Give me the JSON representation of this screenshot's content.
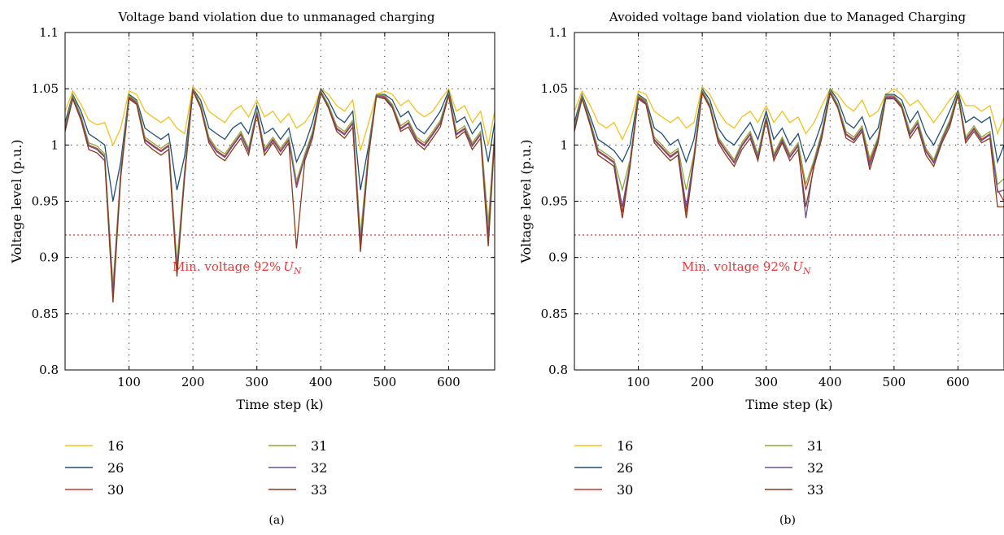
{
  "chart_data": [
    {
      "type": "line",
      "title": "Voltage band violation due to unmanaged charging",
      "xlabel": "Time step (k)",
      "ylabel": "Voltage level (p.u.)",
      "panel_label": "(a)",
      "xlim": [
        0,
        672
      ],
      "ylim": [
        0.8,
        1.1
      ],
      "xticks": [
        "100",
        "200",
        "300",
        "400",
        "500",
        "600"
      ],
      "yticks": [
        "0.8",
        "0.85",
        "0.9",
        "0.95",
        "1",
        "1.05",
        "1.1"
      ],
      "grid": true,
      "legend_position": "below",
      "reference_line": {
        "value": 0.92,
        "label_prefix": "Min. voltage 92%",
        "label_symbol": "U",
        "label_subscript": "N",
        "color": "#e8383b"
      },
      "x": [
        0,
        12,
        25,
        37,
        50,
        62,
        75,
        87,
        100,
        112,
        125,
        137,
        150,
        162,
        175,
        187,
        200,
        212,
        225,
        237,
        250,
        262,
        275,
        287,
        300,
        312,
        325,
        337,
        350,
        362,
        375,
        387,
        400,
        412,
        425,
        437,
        450,
        462,
        475,
        487,
        500,
        512,
        525,
        537,
        550,
        562,
        575,
        587,
        600,
        612,
        625,
        637,
        650,
        662,
        672
      ],
      "series": [
        {
          "name": "16",
          "color": "#f2c21c",
          "values": [
            1.03,
            1.048,
            1.036,
            1.022,
            1.018,
            1.02,
            1.0,
            1.015,
            1.048,
            1.045,
            1.03,
            1.025,
            1.02,
            1.025,
            1.015,
            1.01,
            1.052,
            1.045,
            1.03,
            1.025,
            1.02,
            1.03,
            1.035,
            1.025,
            1.04,
            1.025,
            1.03,
            1.02,
            1.028,
            1.015,
            1.02,
            1.03,
            1.05,
            1.045,
            1.035,
            1.03,
            1.04,
            0.995,
            1.02,
            1.045,
            1.048,
            1.045,
            1.035,
            1.04,
            1.03,
            1.025,
            1.03,
            1.04,
            1.05,
            1.03,
            1.035,
            1.02,
            1.03,
            1.0,
            1.03
          ]
        },
        {
          "name": "26",
          "color": "#1f4e79",
          "values": [
            1.02,
            1.045,
            1.03,
            1.01,
            1.005,
            1.0,
            0.95,
            0.985,
            1.045,
            1.04,
            1.015,
            1.01,
            1.005,
            1.01,
            0.96,
            0.99,
            1.05,
            1.04,
            1.015,
            1.01,
            1.005,
            1.015,
            1.02,
            1.01,
            1.035,
            1.01,
            1.015,
            1.005,
            1.015,
            0.985,
            1.0,
            1.02,
            1.05,
            1.04,
            1.025,
            1.02,
            1.03,
            0.96,
            1.0,
            1.045,
            1.045,
            1.04,
            1.025,
            1.03,
            1.015,
            1.01,
            1.02,
            1.03,
            1.048,
            1.02,
            1.025,
            1.01,
            1.02,
            0.985,
            1.02
          ]
        },
        {
          "name": "30",
          "color": "#c0392b",
          "values": [
            1.015,
            1.043,
            1.025,
            1.0,
            0.997,
            0.99,
            0.87,
            0.975,
            1.043,
            1.038,
            1.005,
            1.0,
            0.995,
            1.0,
            0.89,
            0.975,
            1.05,
            1.035,
            1.005,
            0.995,
            0.99,
            1.0,
            1.01,
            0.995,
            1.03,
            0.995,
            1.005,
            0.995,
            1.005,
            0.965,
            0.99,
            1.01,
            1.048,
            1.035,
            1.015,
            1.01,
            1.02,
            0.915,
            0.995,
            1.045,
            1.043,
            1.035,
            1.015,
            1.02,
            1.005,
            1.0,
            1.01,
            1.02,
            1.046,
            1.01,
            1.015,
            1.0,
            1.01,
            0.92,
            1.01
          ]
        },
        {
          "name": "31",
          "color": "#8aaa3c",
          "values": [
            1.016,
            1.044,
            1.026,
            1.002,
            0.999,
            0.992,
            0.875,
            0.977,
            1.044,
            1.039,
            1.007,
            1.002,
            0.997,
            1.002,
            0.895,
            0.977,
            1.05,
            1.036,
            1.007,
            0.997,
            0.992,
            1.002,
            1.012,
            0.997,
            1.031,
            0.997,
            1.007,
            0.997,
            1.007,
            0.968,
            0.992,
            1.012,
            1.048,
            1.036,
            1.017,
            1.012,
            1.022,
            0.92,
            0.997,
            1.045,
            1.044,
            1.036,
            1.017,
            1.022,
            1.007,
            1.002,
            1.012,
            1.022,
            1.046,
            1.012,
            1.017,
            1.002,
            1.012,
            0.93,
            1.012
          ]
        },
        {
          "name": "32",
          "color": "#6c4f96",
          "values": [
            1.014,
            1.042,
            1.024,
            0.999,
            0.996,
            0.989,
            0.868,
            0.974,
            1.042,
            1.037,
            1.004,
            0.999,
            0.994,
            0.999,
            0.888,
            0.974,
            1.049,
            1.034,
            1.004,
            0.994,
            0.989,
            0.999,
            1.009,
            0.994,
            1.029,
            0.994,
            1.004,
            0.994,
            1.004,
            0.962,
            0.989,
            1.009,
            1.047,
            1.034,
            1.014,
            1.009,
            1.019,
            0.912,
            0.994,
            1.044,
            1.042,
            1.034,
            1.014,
            1.019,
            1.004,
            0.999,
            1.009,
            1.019,
            1.045,
            1.009,
            1.014,
            0.999,
            1.009,
            0.918,
            1.009
          ]
        },
        {
          "name": "33",
          "color": "#8b3a1a",
          "values": [
            1.012,
            1.041,
            1.022,
            0.996,
            0.993,
            0.986,
            0.86,
            0.971,
            1.041,
            1.036,
            1.002,
            0.996,
            0.991,
            0.996,
            0.883,
            0.971,
            1.048,
            1.033,
            1.002,
            0.991,
            0.986,
            0.996,
            1.006,
            0.991,
            1.027,
            0.991,
            1.002,
            0.991,
            1.002,
            0.908,
            0.986,
            1.006,
            1.046,
            1.033,
            1.012,
            1.006,
            1.016,
            0.905,
            0.991,
            1.043,
            1.041,
            1.033,
            1.012,
            1.016,
            1.002,
            0.996,
            1.006,
            1.016,
            1.044,
            1.006,
            1.012,
            0.996,
            1.006,
            0.91,
            1.006
          ]
        }
      ]
    },
    {
      "type": "line",
      "title": "Avoided voltage band violation due to Managed Charging",
      "xlabel": "Time step (k)",
      "ylabel": "Voltage level (p.u.)",
      "panel_label": "(b)",
      "xlim": [
        0,
        672
      ],
      "ylim": [
        0.8,
        1.1
      ],
      "xticks": [
        "100",
        "200",
        "300",
        "400",
        "500",
        "600"
      ],
      "yticks": [
        "0.8",
        "0.85",
        "0.9",
        "0.95",
        "1",
        "1.05",
        "1.1"
      ],
      "grid": true,
      "legend_position": "below",
      "reference_line": {
        "value": 0.92,
        "label_prefix": "Min. voltage 92%",
        "label_symbol": "U",
        "label_subscript": "N",
        "color": "#e8383b"
      },
      "x": [
        0,
        12,
        25,
        37,
        50,
        62,
        75,
        87,
        100,
        112,
        125,
        137,
        150,
        162,
        175,
        187,
        200,
        212,
        225,
        237,
        250,
        262,
        275,
        287,
        300,
        312,
        325,
        337,
        350,
        362,
        375,
        387,
        400,
        412,
        425,
        437,
        450,
        462,
        475,
        487,
        500,
        512,
        525,
        537,
        550,
        562,
        575,
        587,
        600,
        612,
        625,
        637,
        650,
        662,
        672
      ],
      "series": [
        {
          "name": "16",
          "color": "#f2c21c",
          "values": [
            1.03,
            1.048,
            1.035,
            1.02,
            1.015,
            1.02,
            1.005,
            1.02,
            1.048,
            1.045,
            1.03,
            1.025,
            1.02,
            1.025,
            1.015,
            1.02,
            1.052,
            1.045,
            1.03,
            1.02,
            1.015,
            1.025,
            1.03,
            1.02,
            1.035,
            1.02,
            1.03,
            1.02,
            1.025,
            1.01,
            1.02,
            1.035,
            1.05,
            1.045,
            1.035,
            1.03,
            1.04,
            1.025,
            1.03,
            1.045,
            1.05,
            1.045,
            1.035,
            1.04,
            1.03,
            1.02,
            1.03,
            1.04,
            1.048,
            1.035,
            1.035,
            1.03,
            1.035,
            1.01,
            1.025
          ]
        },
        {
          "name": "26",
          "color": "#1f4e79",
          "values": [
            1.02,
            1.045,
            1.025,
            1.005,
            1.0,
            0.995,
            0.985,
            1.0,
            1.045,
            1.04,
            1.015,
            1.01,
            1.0,
            1.005,
            0.985,
            1.005,
            1.05,
            1.04,
            1.015,
            1.005,
            1.0,
            1.01,
            1.02,
            1.005,
            1.03,
            1.005,
            1.015,
            1.0,
            1.01,
            0.985,
            1.0,
            1.02,
            1.05,
            1.04,
            1.02,
            1.015,
            1.025,
            1.005,
            1.015,
            1.045,
            1.045,
            1.04,
            1.02,
            1.03,
            1.01,
            1.0,
            1.015,
            1.03,
            1.048,
            1.02,
            1.025,
            1.02,
            1.025,
            0.985,
            1.0
          ]
        },
        {
          "name": "30",
          "color": "#c0392b",
          "values": [
            1.015,
            1.043,
            1.02,
            0.995,
            0.99,
            0.985,
            0.94,
            0.985,
            1.043,
            1.038,
            1.005,
            0.998,
            0.99,
            0.995,
            0.94,
            0.99,
            1.048,
            1.035,
            1.005,
            0.995,
            0.985,
            1.0,
            1.01,
            0.99,
            1.025,
            0.99,
            1.005,
            0.99,
            1.0,
            0.96,
            0.985,
            1.01,
            1.048,
            1.035,
            1.01,
            1.005,
            1.015,
            0.985,
            1.005,
            1.043,
            1.043,
            1.035,
            1.01,
            1.02,
            0.995,
            0.985,
            1.005,
            1.02,
            1.046,
            1.005,
            1.015,
            1.005,
            1.01,
            0.96,
            0.95
          ]
        },
        {
          "name": "31",
          "color": "#8aaa3c",
          "values": [
            1.016,
            1.044,
            1.021,
            0.997,
            0.992,
            0.987,
            0.96,
            0.987,
            1.044,
            1.039,
            1.007,
            1.0,
            0.992,
            0.997,
            0.96,
            0.992,
            1.049,
            1.036,
            1.007,
            0.997,
            0.987,
            1.002,
            1.012,
            0.992,
            1.026,
            0.992,
            1.007,
            0.992,
            1.002,
            0.965,
            0.987,
            1.012,
            1.049,
            1.036,
            1.012,
            1.007,
            1.017,
            0.988,
            1.007,
            1.044,
            1.044,
            1.036,
            1.012,
            1.022,
            0.997,
            0.987,
            1.007,
            1.022,
            1.047,
            1.007,
            1.017,
            1.007,
            1.012,
            0.965,
            0.97
          ]
        },
        {
          "name": "32",
          "color": "#6c4f96",
          "values": [
            1.014,
            1.042,
            1.019,
            0.994,
            0.989,
            0.984,
            0.945,
            0.984,
            1.042,
            1.037,
            1.004,
            0.997,
            0.989,
            0.994,
            0.945,
            0.989,
            1.047,
            1.034,
            1.004,
            0.994,
            0.984,
            0.999,
            1.009,
            0.989,
            1.024,
            0.989,
            1.004,
            0.989,
            0.999,
            0.935,
            0.984,
            1.009,
            1.047,
            1.034,
            1.009,
            1.004,
            1.014,
            0.982,
            1.004,
            1.042,
            1.042,
            1.034,
            1.009,
            1.019,
            0.994,
            0.984,
            1.004,
            1.019,
            1.045,
            1.004,
            1.014,
            1.004,
            1.009,
            0.958,
            0.96
          ]
        },
        {
          "name": "33",
          "color": "#8b3a1a",
          "values": [
            1.012,
            1.041,
            1.017,
            0.991,
            0.986,
            0.981,
            0.935,
            0.981,
            1.041,
            1.036,
            1.002,
            0.994,
            0.986,
            0.991,
            0.935,
            0.986,
            1.046,
            1.033,
            1.002,
            0.991,
            0.981,
            0.996,
            1.006,
            0.986,
            1.022,
            0.986,
            1.002,
            0.986,
            0.996,
            0.945,
            0.981,
            1.006,
            1.046,
            1.033,
            1.006,
            1.002,
            1.012,
            0.978,
            1.002,
            1.041,
            1.041,
            1.033,
            1.006,
            1.016,
            0.991,
            0.981,
            1.002,
            1.016,
            1.044,
            1.002,
            1.012,
            1.002,
            1.006,
            0.945,
            0.945
          ]
        }
      ]
    }
  ]
}
